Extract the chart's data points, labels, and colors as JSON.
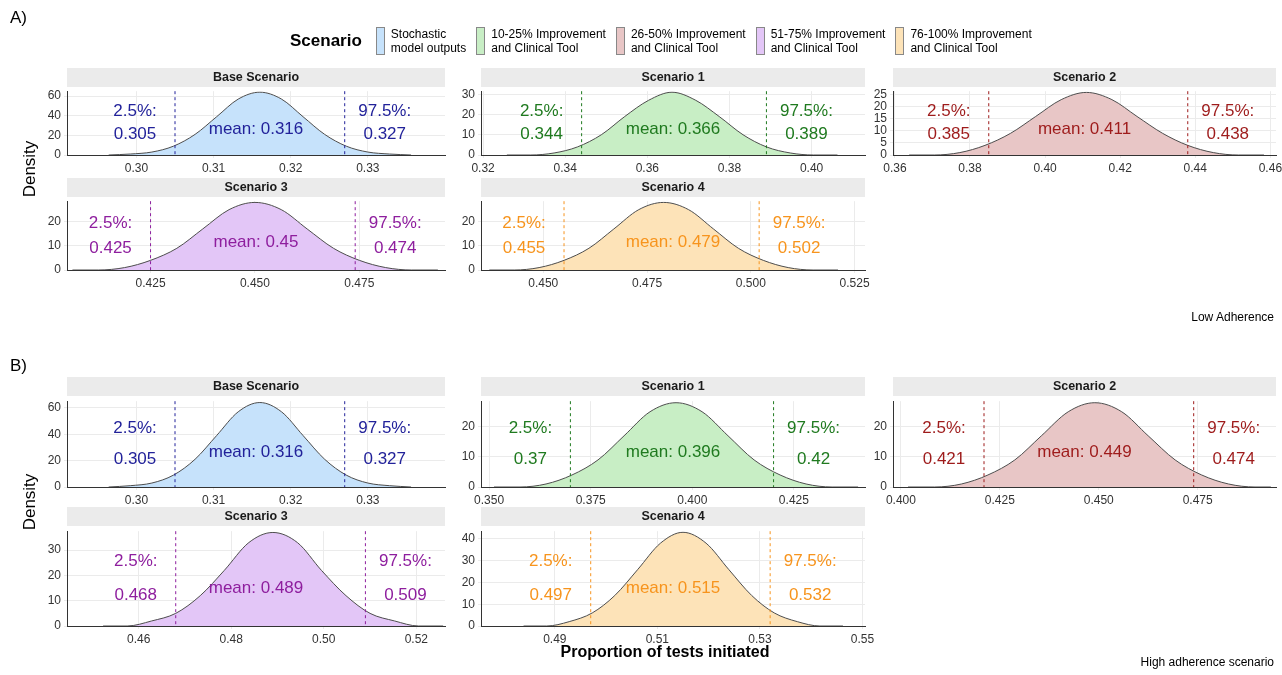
{
  "chart_data": [
    {
      "type": "area",
      "title": "Base Scenario",
      "ylabel": "Density",
      "legend": "top",
      "legend_title": "Scenario",
      "grid": true,
      "x": [
        0.2964,
        0.2992,
        0.302,
        0.3048,
        0.3076,
        0.3104,
        0.3132,
        0.316,
        0.3188,
        0.3216,
        0.3244,
        0.3272,
        0.33,
        0.3328,
        0.3356
      ],
      "series": [
        {
          "name": "Stochastic\nmodel outputs",
          "color": "#c6e2fb",
          "values": [
            0,
            1,
            3,
            9,
            21,
            39,
            57,
            64,
            57,
            39,
            21,
            9,
            3,
            1,
            0
          ]
        }
      ],
      "xlim": [
        0.291,
        0.34
      ],
      "xticks": [
        {
          "value": 0.3,
          "label": "0.30"
        },
        0.31,
        0.32,
        0.33
      ],
      "ylim": [
        0,
        65
      ],
      "yticks": [
        0,
        20,
        40,
        60
      ],
      "ref_lines": [
        {
          "axis": "x",
          "value": 0.305,
          "label": "2.5%:\n0.305",
          "color": "#22229a",
          "line_style": "dashed"
        },
        {
          "axis": "x",
          "value": 0.327,
          "label": "97.5%:\n0.327",
          "color": "#22229a",
          "line_style": "dashed"
        }
      ],
      "annotations": [
        "A)",
        "mean: 0.316"
      ]
    },
    {
      "type": "area",
      "title": "Scenario 1",
      "grid": true,
      "x": [
        0.3258,
        0.3315,
        0.3373,
        0.343,
        0.3488,
        0.3545,
        0.3603,
        0.366,
        0.3718,
        0.3775,
        0.3833,
        0.389,
        0.3948,
        0.4005,
        0.4063
      ],
      "series": [
        {
          "name": "10-25% Improvement\nand Clinical Tool",
          "color": "#c8eec5",
          "values": [
            0,
            0,
            1,
            4,
            10,
            19,
            27,
            31,
            27,
            19,
            10,
            4,
            1,
            0,
            0
          ]
        }
      ],
      "xlim": [
        0.3195,
        0.413
      ],
      "xticks": [
        0.32,
        0.34,
        0.36,
        0.38,
        {
          "value": 0.4,
          "label": "0.40"
        }
      ],
      "ylim": [
        0,
        31.5
      ],
      "yticks": [
        0,
        10,
        20,
        30
      ],
      "ref_lines": [
        {
          "axis": "x",
          "value": 0.344,
          "label": "2.5%:\n0.344",
          "color": "#1f7a1f",
          "line_style": "dashed"
        },
        {
          "axis": "x",
          "value": 0.389,
          "label": "97.5%:\n0.389",
          "color": "#1f7a1f",
          "line_style": "dashed"
        }
      ],
      "annotations": [
        "mean: 0.366"
      ]
    },
    {
      "type": "area",
      "title": "Scenario 2",
      "grid": true,
      "x": [
        0.3638,
        0.3705,
        0.3773,
        0.384,
        0.3908,
        0.3975,
        0.4043,
        0.411,
        0.4178,
        0.4245,
        0.4313,
        0.438,
        0.4448,
        0.4515,
        0.4583
      ],
      "series": [
        {
          "name": "26-50% Improvement\nand Clinical Tool",
          "color": "#e8c6c6",
          "values": [
            0,
            0,
            1,
            4,
            9,
            16,
            23,
            26,
            23,
            16,
            9,
            4,
            1,
            0,
            0
          ]
        }
      ],
      "xlim": [
        0.3595,
        0.4615
      ],
      "xticks": [
        0.36,
        0.38,
        {
          "value": 0.4,
          "label": "0.40"
        },
        0.42,
        0.44,
        0.46
      ],
      "ylim": [
        0,
        26.5
      ],
      "yticks": [
        0,
        5,
        10,
        15,
        20,
        25
      ],
      "ref_lines": [
        {
          "axis": "x",
          "value": 0.385,
          "label": "2.5%:\n0.385",
          "color": "#9e1b1b",
          "line_style": "dashed"
        },
        {
          "axis": "x",
          "value": 0.438,
          "label": "97.5%:\n0.438",
          "color": "#9e1b1b",
          "line_style": "dashed"
        }
      ],
      "annotations": [
        "mean: 0.411"
      ]
    },
    {
      "type": "area",
      "title": "Scenario 3",
      "grid": true,
      "x": [
        0.4063,
        0.4125,
        0.4188,
        0.425,
        0.4313,
        0.4375,
        0.4438,
        0.45,
        0.4563,
        0.4625,
        0.4688,
        0.475,
        0.4813,
        0.4875,
        0.4938
      ],
      "series": [
        {
          "name": "51-75% Improvement\nand Clinical Tool",
          "color": "#e3c6f7",
          "values": [
            0,
            0,
            1,
            4,
            9,
            17,
            25,
            28,
            25,
            17,
            9,
            4,
            1,
            0,
            0
          ]
        }
      ],
      "xlim": [
        0.405,
        0.4955
      ],
      "xticks": [
        0.425,
        {
          "value": 0.45,
          "label": "0.450"
        },
        0.475
      ],
      "ylim": [
        0,
        28.5
      ],
      "yticks": [
        0,
        10,
        20
      ],
      "ref_lines": [
        {
          "axis": "x",
          "value": 0.425,
          "label": "2.5%:\n0.425",
          "color": "#8e1e9e",
          "line_style": "dashed"
        },
        {
          "axis": "x",
          "value": 0.474,
          "label": "97.5%:\n0.474",
          "color": "#8e1e9e",
          "line_style": "dashed"
        }
      ],
      "annotations": [
        "mean: 0.45"
      ]
    },
    {
      "type": "area",
      "title": "Scenario 4",
      "grid": true,
      "x": [
        0.437,
        0.443,
        0.449,
        0.455,
        0.461,
        0.467,
        0.473,
        0.479,
        0.485,
        0.491,
        0.497,
        0.503,
        0.509,
        0.515,
        0.521
      ],
      "series": [
        {
          "name": "76-100% Improvement\nand Clinical Tool",
          "color": "#fde3b8",
          "values": [
            0,
            0,
            1,
            4,
            9,
            17,
            25,
            28,
            25,
            17,
            9,
            4,
            1,
            0,
            0
          ]
        }
      ],
      "xlim": [
        0.435,
        0.5275
      ],
      "xticks": [
        {
          "value": 0.45,
          "label": "0.450"
        },
        0.475,
        {
          "value": 0.5,
          "label": "0.500"
        },
        0.525
      ],
      "ylim": [
        0,
        28.5
      ],
      "yticks": [
        0,
        10,
        20
      ],
      "ref_lines": [
        {
          "axis": "x",
          "value": 0.455,
          "label": "2.5%:\n0.455",
          "color": "#f7941d",
          "line_style": "dashed"
        },
        {
          "axis": "x",
          "value": 0.502,
          "label": "97.5%:\n0.502",
          "color": "#f7941d",
          "line_style": "dashed"
        }
      ],
      "annotations": [
        "mean: 0.479",
        "Low Adherence"
      ]
    },
    {
      "type": "area",
      "title": "Base Scenario",
      "ylabel": "Density",
      "grid": true,
      "x": [
        0.2964,
        0.2992,
        0.302,
        0.3048,
        0.3076,
        0.3104,
        0.3132,
        0.316,
        0.3188,
        0.3216,
        0.3244,
        0.3272,
        0.33,
        0.3328,
        0.3356
      ],
      "series": [
        {
          "color": "#c6e2fb",
          "values": [
            0,
            1,
            3,
            9,
            21,
            39,
            57,
            64,
            57,
            39,
            21,
            9,
            3,
            1,
            0
          ]
        }
      ],
      "xlim": [
        0.291,
        0.34
      ],
      "xticks": [
        {
          "value": 0.3,
          "label": "0.30"
        },
        0.31,
        0.32,
        0.33
      ],
      "ylim": [
        0,
        65
      ],
      "yticks": [
        0,
        20,
        40,
        60
      ],
      "ref_lines": [
        {
          "axis": "x",
          "value": 0.305,
          "label": "2.5%:\n0.305",
          "color": "#22229a",
          "line_style": "dashed"
        },
        {
          "axis": "x",
          "value": 0.327,
          "label": "97.5%:\n0.327",
          "color": "#22229a",
          "line_style": "dashed"
        }
      ],
      "annotations": [
        "B)",
        "mean: 0.316"
      ]
    },
    {
      "type": "area",
      "title": "Scenario 1",
      "grid": true,
      "x": [
        0.3512,
        0.3576,
        0.364,
        0.3704,
        0.3768,
        0.3832,
        0.3896,
        0.396,
        0.4024,
        0.4088,
        0.4152,
        0.4216,
        0.428,
        0.4344,
        0.4408
      ],
      "series": [
        {
          "color": "#c8eec5",
          "values": [
            0,
            0,
            1,
            4,
            9,
            17,
            25,
            28,
            25,
            17,
            9,
            4,
            1,
            0,
            0
          ]
        }
      ],
      "xlim": [
        0.348,
        0.4425
      ],
      "xticks": [
        {
          "value": 0.35,
          "label": "0.350"
        },
        0.375,
        {
          "value": 0.4,
          "label": "0.400"
        },
        0.425
      ],
      "ylim": [
        0,
        28.5
      ],
      "yticks": [
        0,
        10,
        20
      ],
      "ref_lines": [
        {
          "axis": "x",
          "value": 0.37,
          "label": "2.5%:\n0.37",
          "color": "#1f7a1f",
          "line_style": "dashed"
        },
        {
          "axis": "x",
          "value": 0.42,
          "label": "97.5%:\n0.42",
          "color": "#1f7a1f",
          "line_style": "dashed"
        }
      ],
      "annotations": [
        "mean: 0.396"
      ]
    },
    {
      "type": "area",
      "title": "Scenario 2",
      "grid": true,
      "x": [
        0.4018,
        0.4085,
        0.4153,
        0.422,
        0.4288,
        0.4355,
        0.4423,
        0.449,
        0.4558,
        0.4625,
        0.4693,
        0.476,
        0.4828,
        0.4895,
        0.4935
      ],
      "series": [
        {
          "color": "#e8c6c6",
          "values": [
            0,
            0,
            1,
            4,
            9,
            17,
            25,
            28,
            25,
            17,
            9,
            4,
            1,
            0,
            0
          ]
        }
      ],
      "xlim": [
        0.398,
        0.4948
      ],
      "xticks": [
        {
          "value": 0.4,
          "label": "0.400"
        },
        0.425,
        {
          "value": 0.45,
          "label": "0.450"
        },
        0.475
      ],
      "ylim": [
        0,
        28.5
      ],
      "yticks": [
        0,
        10,
        20
      ],
      "ref_lines": [
        {
          "axis": "x",
          "value": 0.421,
          "label": "2.5%:\n0.421",
          "color": "#9e1b1b",
          "line_style": "dashed"
        },
        {
          "axis": "x",
          "value": 0.474,
          "label": "97.5%:\n0.474",
          "color": "#9e1b1b",
          "line_style": "dashed"
        }
      ],
      "annotations": [
        "mean: 0.449"
      ]
    },
    {
      "type": "area",
      "title": "Scenario 3",
      "grid": true,
      "x": [
        0.4523,
        0.4575,
        0.4628,
        0.468,
        0.4733,
        0.4785,
        0.4838,
        0.489,
        0.4943,
        0.4995,
        0.5048,
        0.51,
        0.5153,
        0.5205,
        0.5258
      ],
      "series": [
        {
          "color": "#e3c6f7",
          "values": [
            0,
            0,
            2,
            5,
            12,
            22,
            33,
            37,
            33,
            22,
            12,
            5,
            2,
            0,
            0
          ]
        }
      ],
      "xlim": [
        0.4445,
        0.5262
      ],
      "xticks": [
        0.46,
        0.48,
        {
          "value": 0.5,
          "label": "0.50"
        },
        0.52
      ],
      "ylim": [
        0,
        37.5
      ],
      "yticks": [
        0,
        10,
        20,
        30
      ],
      "ref_lines": [
        {
          "axis": "x",
          "value": 0.468,
          "label": "2.5%:\n0.468",
          "color": "#8e1e9e",
          "line_style": "dashed"
        },
        {
          "axis": "x",
          "value": 0.509,
          "label": "97.5%:\n0.509",
          "color": "#8e1e9e",
          "line_style": "dashed"
        }
      ],
      "annotations": [
        "mean: 0.489"
      ]
    },
    {
      "type": "area",
      "title": "Scenario 4",
      "xlabel": "Proportion of tests initiated",
      "grid": true,
      "x": [
        0.4839,
        0.4884,
        0.4928,
        0.4973,
        0.5017,
        0.5062,
        0.5106,
        0.515,
        0.5195,
        0.5239,
        0.5284,
        0.5328,
        0.5373,
        0.5417,
        0.5462
      ],
      "series": [
        {
          "color": "#fde3b8",
          "values": [
            0,
            0,
            2,
            6,
            14,
            26,
            38,
            43,
            38,
            26,
            14,
            6,
            2,
            0,
            0
          ]
        }
      ],
      "xlim": [
        0.4756,
        0.5505
      ],
      "xticks": [
        0.49,
        0.51,
        0.53,
        0.55
      ],
      "ylim": [
        0,
        43.5
      ],
      "yticks": [
        0,
        10,
        20,
        30,
        40
      ],
      "ref_lines": [
        {
          "axis": "x",
          "value": 0.497,
          "label": "2.5%:\n0.497",
          "color": "#f7941d",
          "line_style": "dashed"
        },
        {
          "axis": "x",
          "value": 0.532,
          "label": "97.5%:\n0.532",
          "color": "#f7941d",
          "line_style": "dashed"
        }
      ],
      "annotations": [
        "mean: 0.515",
        "High adherence scenario"
      ]
    }
  ]
}
